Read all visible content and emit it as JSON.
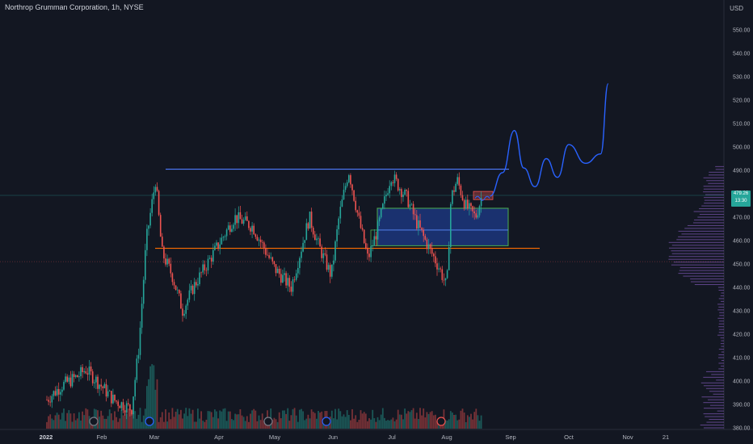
{
  "header": {
    "title": "Northrop Grumman Corporation, 1h, NYSE",
    "currency": "USD"
  },
  "price_tag": {
    "price": "479.26",
    "countdown": "13:30"
  },
  "colors": {
    "bg": "#131722",
    "up": "#26a69a",
    "down": "#ef5350",
    "forecast": "#2962ff",
    "resistance": "#4f7cff",
    "support": "#ff6d00",
    "zone": "#1e4a8a",
    "profile": "#9c6ade"
  },
  "chart_data": {
    "type": "candlestick",
    "title": "Northrop Grumman Corporation, 1h, NYSE",
    "y_axis": {
      "ticks": [
        550,
        540,
        530,
        520,
        510,
        500,
        490,
        480,
        470,
        460,
        450,
        440,
        430,
        420,
        410,
        400,
        390,
        380
      ],
      "tick_labels": [
        "550.00",
        "540.00",
        "530.00",
        "520.00",
        "510.00",
        "500.00",
        "490.00",
        "480.00",
        "470.00",
        "460.00",
        "450.00",
        "440.00",
        "430.00",
        "420.00",
        "410.00",
        "400.00",
        "390.00",
        "380.00"
      ],
      "ylim": [
        379,
        551
      ]
    },
    "x_axis": {
      "ticks": [
        "2022",
        "Feb",
        "Mar",
        "Apr",
        "May",
        "Jun",
        "Jul",
        "Aug",
        "Sep",
        "Oct",
        "Nov",
        "21"
      ]
    },
    "price_path": [
      {
        "t": "Jan 1",
        "p": 392
      },
      {
        "t": "Jan 10",
        "p": 398
      },
      {
        "t": "Jan 20",
        "p": 402
      },
      {
        "t": "Jan 25",
        "p": 405
      },
      {
        "t": "Feb 1",
        "p": 400
      },
      {
        "t": "Feb 10",
        "p": 392
      },
      {
        "t": "Feb 20",
        "p": 388
      },
      {
        "t": "Feb 24",
        "p": 415
      },
      {
        "t": "Feb 28",
        "p": 460
      },
      {
        "t": "Mar 2",
        "p": 486
      },
      {
        "t": "Mar 5",
        "p": 455
      },
      {
        "t": "Mar 10",
        "p": 445
      },
      {
        "t": "Mar 15",
        "p": 430
      },
      {
        "t": "Mar 20",
        "p": 440
      },
      {
        "t": "Apr 1",
        "p": 458
      },
      {
        "t": "Apr 10",
        "p": 470
      },
      {
        "t": "Apr 20",
        "p": 466
      },
      {
        "t": "May 1",
        "p": 448
      },
      {
        "t": "May 10",
        "p": 440
      },
      {
        "t": "May 15",
        "p": 455
      },
      {
        "t": "May 20",
        "p": 470
      },
      {
        "t": "May 25",
        "p": 458
      },
      {
        "t": "Jun 1",
        "p": 445
      },
      {
        "t": "Jun 5",
        "p": 470
      },
      {
        "t": "Jun 10",
        "p": 490
      },
      {
        "t": "Jun 15",
        "p": 470
      },
      {
        "t": "Jun 20",
        "p": 452
      },
      {
        "t": "Jun 25",
        "p": 465
      },
      {
        "t": "Jul 1",
        "p": 488
      },
      {
        "t": "Jul 10",
        "p": 478
      },
      {
        "t": "Jul 15",
        "p": 468
      },
      {
        "t": "Jul 20",
        "p": 460
      },
      {
        "t": "Jul 28",
        "p": 448
      },
      {
        "t": "Aug 1",
        "p": 440
      },
      {
        "t": "Aug 3",
        "p": 478
      },
      {
        "t": "Aug 6",
        "p": 486
      },
      {
        "t": "Aug 10",
        "p": 475
      },
      {
        "t": "Aug 15",
        "p": 470
      },
      {
        "t": "Aug 18",
        "p": 479
      }
    ],
    "resistance_level": 490.5,
    "support_level": 456.7,
    "current_price_line": 479.3,
    "lower_dotted_level": 451.0,
    "demand_zone": {
      "top": 473.8,
      "bottom": 457.8,
      "mid": 464.5
    },
    "forecast_path": [
      {
        "t": "Aug 22",
        "p": 479
      },
      {
        "t": "Aug 28",
        "p": 489
      },
      {
        "t": "Sep 3",
        "p": 507
      },
      {
        "t": "Sep 8",
        "p": 491
      },
      {
        "t": "Sep 14",
        "p": 483
      },
      {
        "t": "Sep 20",
        "p": 495
      },
      {
        "t": "Sep 26",
        "p": 487
      },
      {
        "t": "Oct 1",
        "p": 501
      },
      {
        "t": "Oct 10",
        "p": 493
      },
      {
        "t": "Oct 18",
        "p": 497
      },
      {
        "t": "Oct 22",
        "p": 527
      }
    ]
  }
}
